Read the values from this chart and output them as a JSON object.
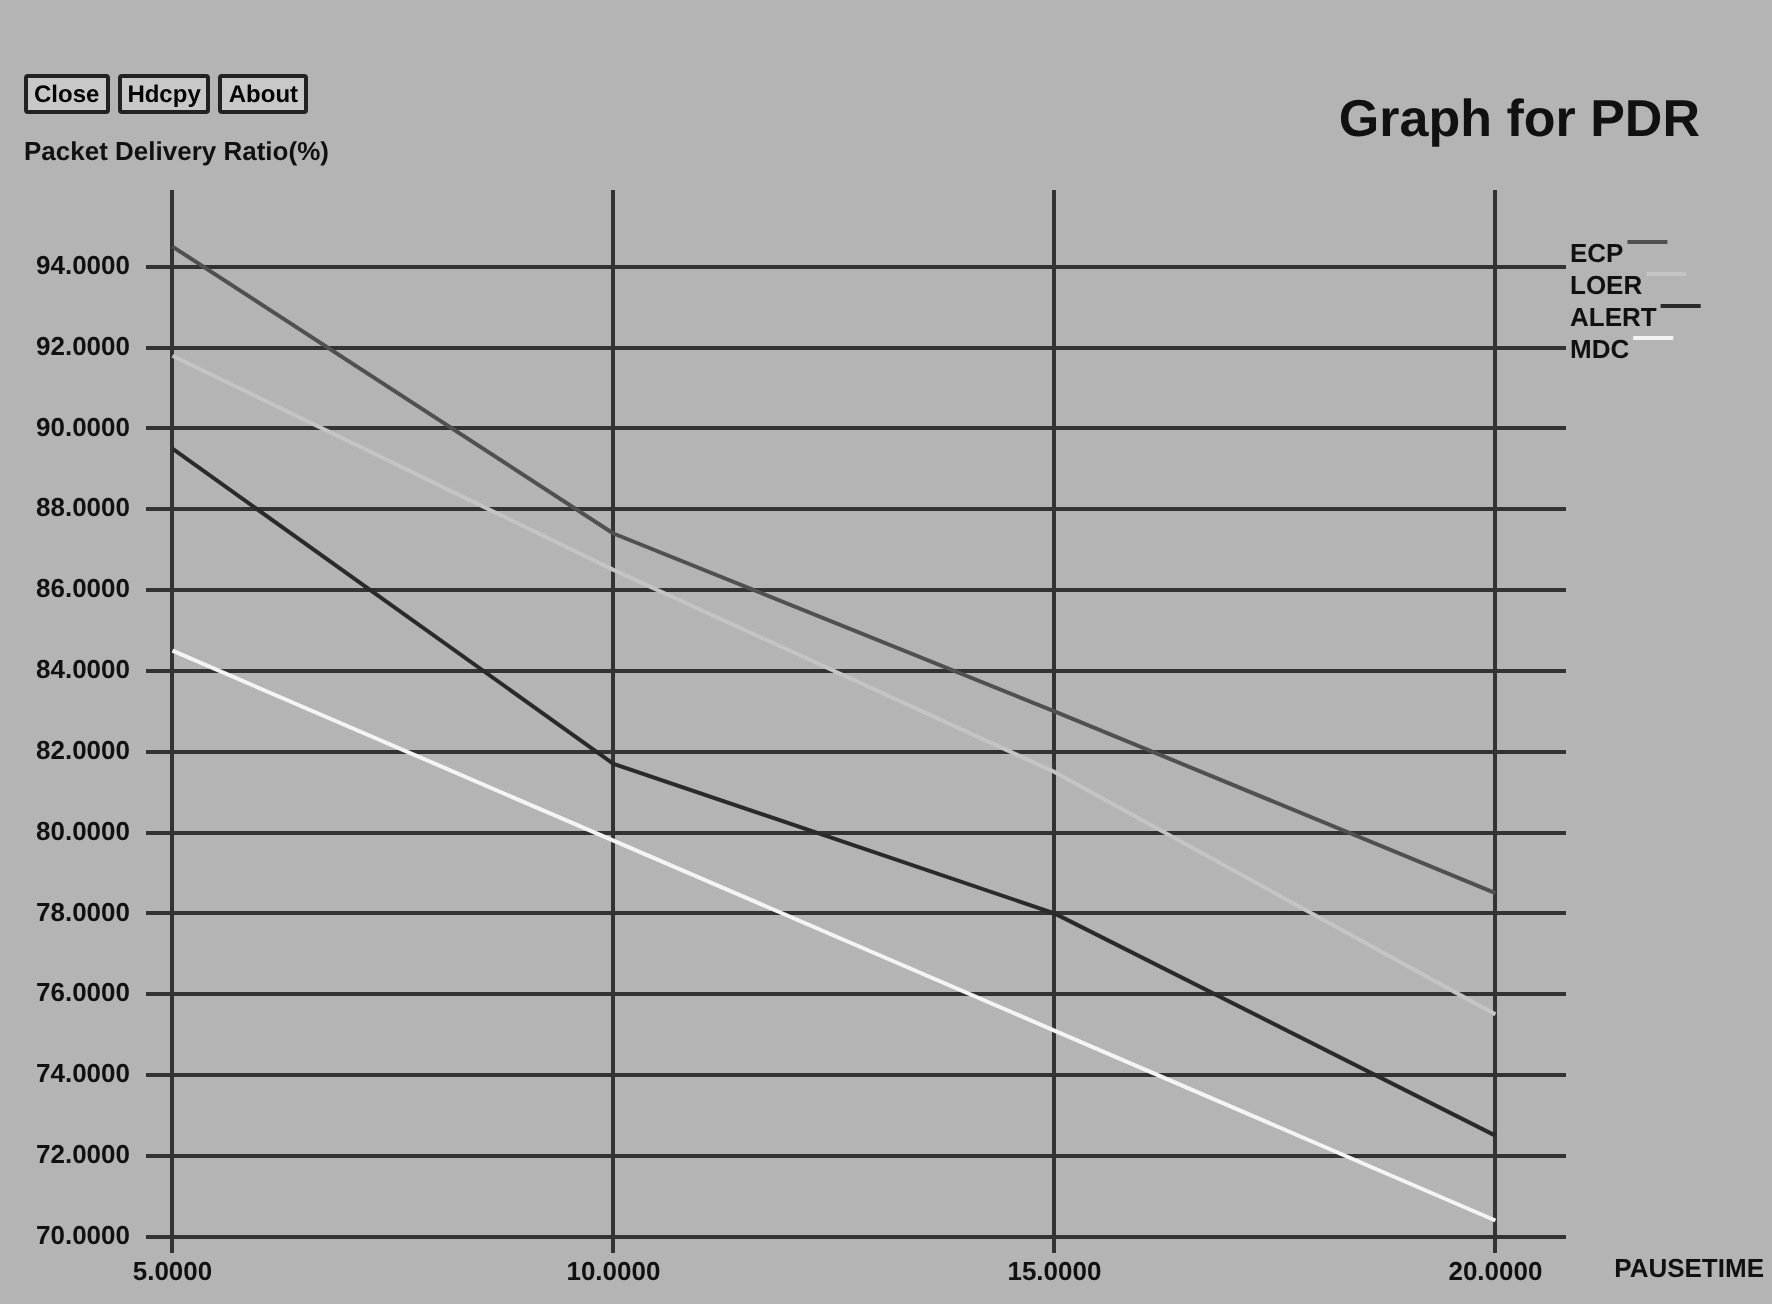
{
  "chart_data": {
    "type": "line",
    "title": "Graph for PDR",
    "ylabel": "Packet Delivery Ratio(%)",
    "xlabel": "PAUSETIME",
    "annotations": [
      "Close",
      "Hdcpy",
      "About"
    ],
    "x": [
      5,
      10,
      15,
      20
    ],
    "series": [
      {
        "name": "ECP",
        "color": "#505050",
        "values": [
          94.5,
          87.4,
          83.0,
          78.5
        ]
      },
      {
        "name": "LOER",
        "color": "#c4c4c4",
        "values": [
          91.8,
          86.5,
          81.5,
          75.5
        ]
      },
      {
        "name": "ALERT",
        "color": "#2a2a2a",
        "values": [
          89.5,
          81.7,
          78.0,
          72.5
        ]
      },
      {
        "name": "MDC",
        "color": "#f4f4f4",
        "values": [
          84.5,
          79.8,
          75.1,
          70.4
        ]
      }
    ],
    "xlim": [
      4.7,
      20.8
    ],
    "ylim": [
      69.6,
      95.9
    ],
    "xticks": [
      {
        "value": 5,
        "label": "5.0000"
      },
      {
        "value": 10,
        "label": "10.0000"
      },
      {
        "value": 15,
        "label": "15.0000"
      },
      {
        "value": 20,
        "label": "20.0000"
      }
    ],
    "yticks": [
      {
        "value": 70,
        "label": "70.0000"
      },
      {
        "value": 72,
        "label": "72.0000"
      },
      {
        "value": 74,
        "label": "74.0000"
      },
      {
        "value": 76,
        "label": "76.0000"
      },
      {
        "value": 78,
        "label": "78.0000"
      },
      {
        "value": 80,
        "label": "80.0000"
      },
      {
        "value": 82,
        "label": "82.0000"
      },
      {
        "value": 84,
        "label": "84.0000"
      },
      {
        "value": 86,
        "label": "86.0000"
      },
      {
        "value": 88,
        "label": "88.0000"
      },
      {
        "value": 90,
        "label": "90.0000"
      },
      {
        "value": 92,
        "label": "92.0000"
      },
      {
        "value": 94,
        "label": "94.0000"
      }
    ],
    "grid": true,
    "legend": "top right",
    "marker": "none",
    "line_style": "solid"
  }
}
